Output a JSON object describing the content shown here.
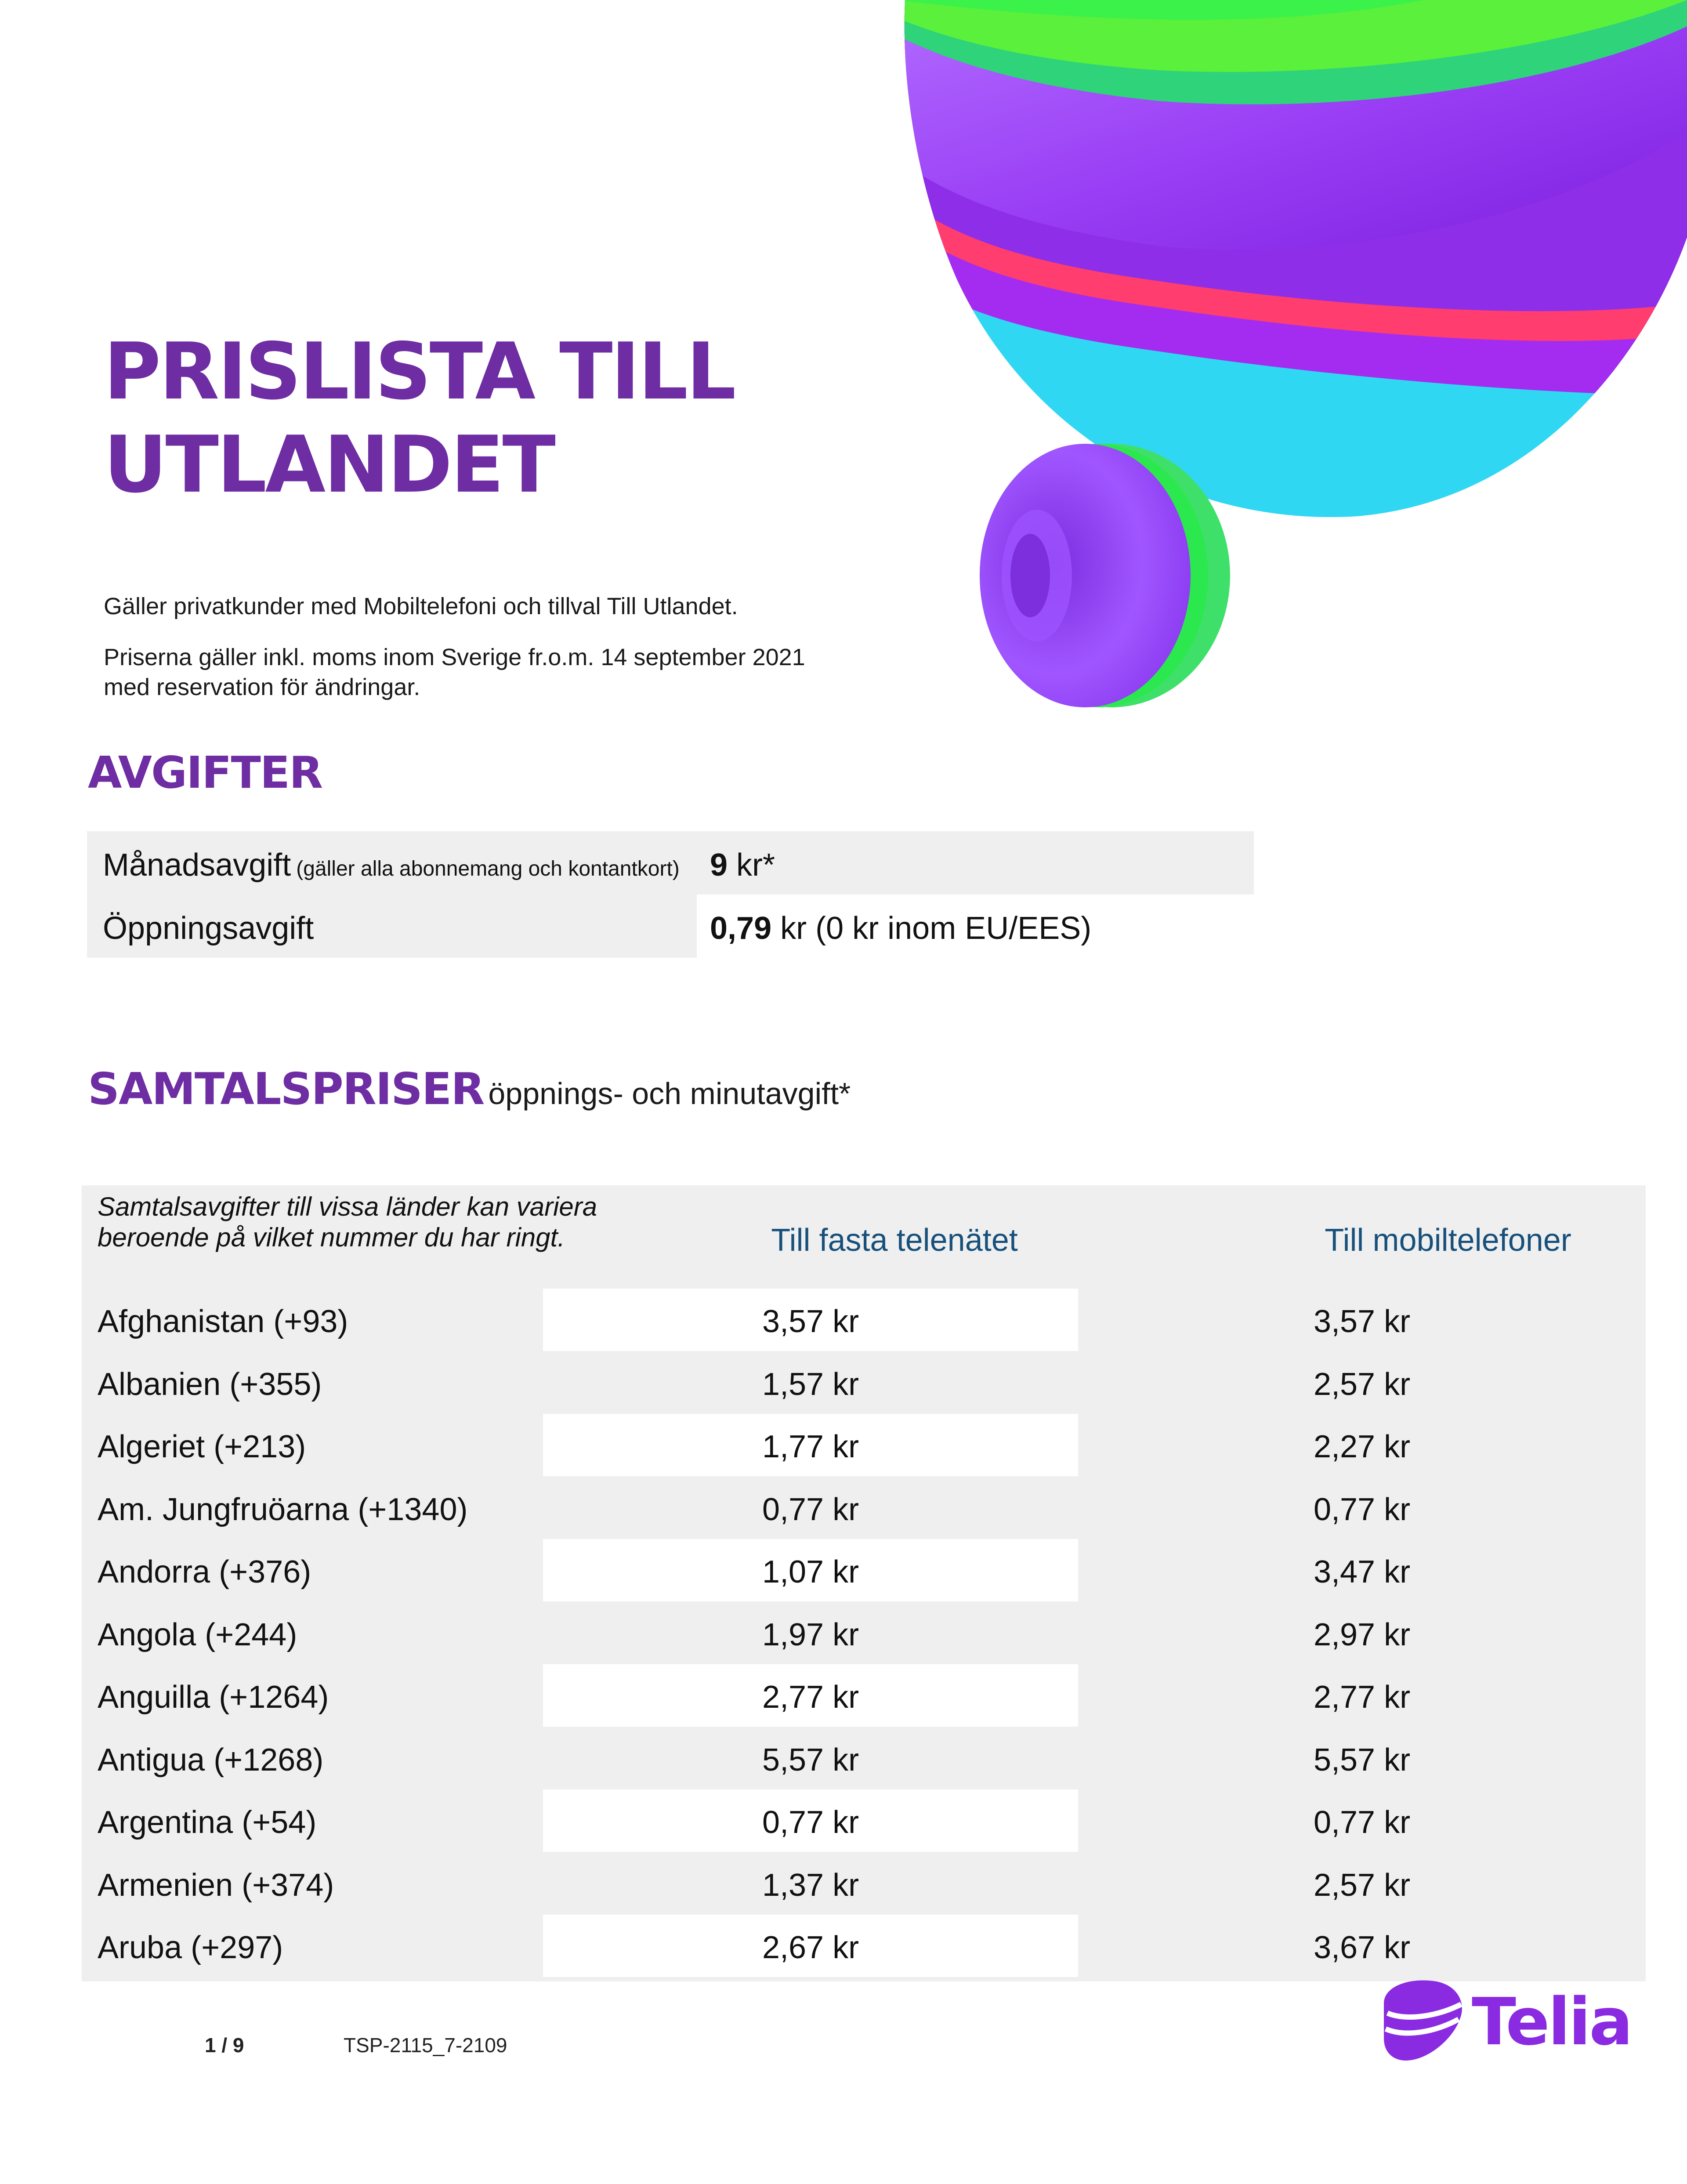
{
  "header": {
    "title_line1": "PRISLISTA TILL",
    "title_line2": "UTLANDET"
  },
  "intro": {
    "line1": "Gäller privatkunder med Mobiltelefoni och tillval Till Utlandet.",
    "line2a": "Priserna gäller inkl. moms inom Sverige fr.o.m. 14 september 2021",
    "line2b": "med reservation för ändringar."
  },
  "fees": {
    "heading": "AVGIFTER",
    "rows": [
      {
        "label": "Månadsavgift",
        "note": "(gäller alla abonnemang och kontantkort)",
        "value_bold": "9",
        "value_rest": " kr*"
      },
      {
        "label": "Öppningsavgift",
        "note": "",
        "value_bold": "0,79",
        "value_rest": " kr (0 kr inom EU/EES)"
      }
    ]
  },
  "calls": {
    "heading": "SAMTALSPRISER",
    "subheading": "öppnings- och minutavgift*",
    "note": "Samtalsavgifter till vissa länder kan variera beroende på vilket nummer du har ringt.",
    "col_fixed": "Till fasta telenätet",
    "col_mobile": "Till mobiltelefoner",
    "rows": [
      {
        "country": "Afghanistan (+93)",
        "fixed": "3,57 kr",
        "mobile": "3,57 kr"
      },
      {
        "country": "Albanien (+355)",
        "fixed": "1,57 kr",
        "mobile": "2,57 kr"
      },
      {
        "country": "Algeriet (+213)",
        "fixed": "1,77 kr",
        "mobile": "2,27 kr"
      },
      {
        "country": "Am. Jungfruöarna (+1340)",
        "fixed": "0,77 kr",
        "mobile": "0,77 kr"
      },
      {
        "country": "Andorra (+376)",
        "fixed": "1,07 kr",
        "mobile": "3,47 kr"
      },
      {
        "country": "Angola (+244)",
        "fixed": "1,97 kr",
        "mobile": "2,97 kr"
      },
      {
        "country": "Anguilla (+1264)",
        "fixed": "2,77 kr",
        "mobile": "2,77 kr"
      },
      {
        "country": "Antigua (+1268)",
        "fixed": "5,57 kr",
        "mobile": "5,57 kr"
      },
      {
        "country": "Argentina (+54)",
        "fixed": "0,77 kr",
        "mobile": "0,77 kr"
      },
      {
        "country": "Armenien (+374)",
        "fixed": "1,37 kr",
        "mobile": "2,57 kr"
      },
      {
        "country": "Aruba (+297)",
        "fixed": "2,67 kr",
        "mobile": "3,67 kr"
      }
    ]
  },
  "footer": {
    "page": "1 / 9",
    "code": "TSP-2115_7-2109",
    "brand": "Telia"
  },
  "colors": {
    "brand_purple": "#6e2da3",
    "column_header_blue": "#17507b",
    "row_gray": "#efefef"
  }
}
